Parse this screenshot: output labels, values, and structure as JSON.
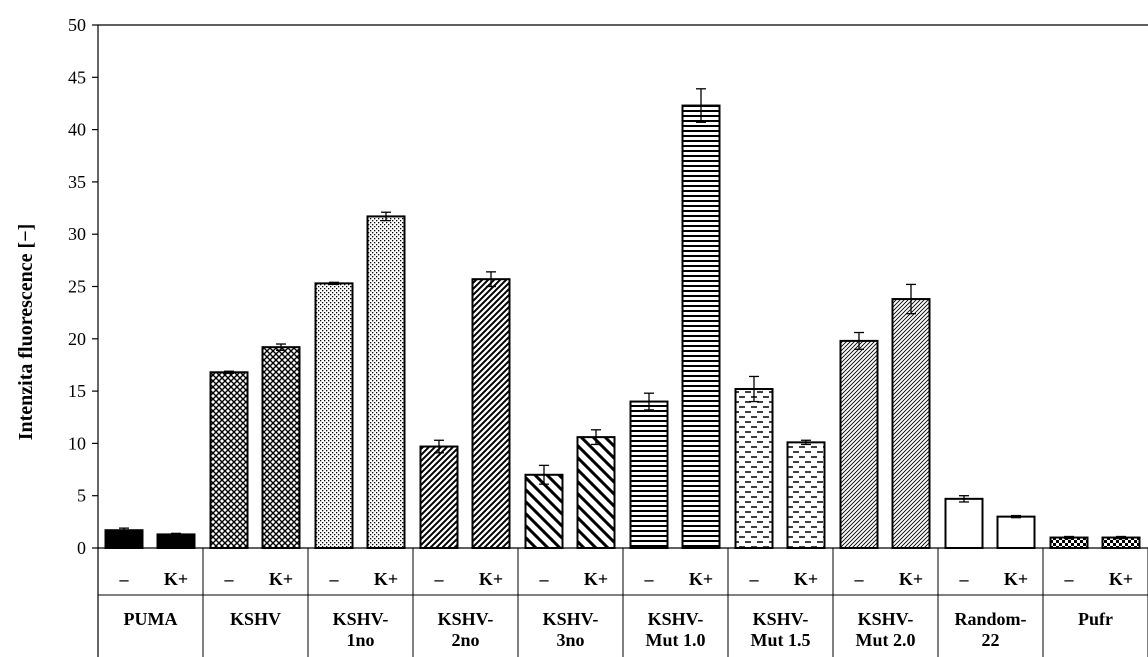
{
  "chart_data": {
    "type": "bar",
    "ylabel": "Intenzita fluorescence [−]",
    "ylim": [
      0,
      50
    ],
    "yticks": [
      "0",
      "5",
      "10",
      "15",
      "20",
      "25",
      "30",
      "35",
      "40",
      "45",
      "50"
    ],
    "grid": false,
    "legend": "none",
    "conditions": [
      "–",
      "K+"
    ],
    "groups": [
      {
        "label": [
          "PUMA"
        ],
        "values": [
          1.7,
          1.3
        ],
        "errors": [
          0.2,
          0.1
        ],
        "pattern": "solid"
      },
      {
        "label": [
          "KSHV"
        ],
        "values": [
          16.8,
          19.2
        ],
        "errors": [
          0.1,
          0.3
        ],
        "pattern": "cross"
      },
      {
        "label": [
          "KSHV-",
          "1no"
        ],
        "values": [
          25.3,
          31.7
        ],
        "errors": [
          0.1,
          0.4
        ],
        "pattern": "dots"
      },
      {
        "label": [
          "KSHV-",
          "2no"
        ],
        "values": [
          9.7,
          25.7
        ],
        "errors": [
          0.6,
          0.7
        ],
        "pattern": "diag-dense"
      },
      {
        "label": [
          "KSHV-",
          "3no"
        ],
        "values": [
          7.0,
          10.6
        ],
        "errors": [
          0.9,
          0.7
        ],
        "pattern": "diag-wide"
      },
      {
        "label": [
          "KSHV-",
          "Mut 1.0"
        ],
        "values": [
          14.0,
          42.3
        ],
        "errors": [
          0.8,
          1.6
        ],
        "pattern": "horizontal"
      },
      {
        "label": [
          "KSHV-",
          "Mut 1.5"
        ],
        "values": [
          15.2,
          10.1
        ],
        "errors": [
          1.2,
          0.2
        ],
        "pattern": "dashes"
      },
      {
        "label": [
          "KSHV-",
          "Mut 2.0"
        ],
        "values": [
          19.8,
          23.8
        ],
        "errors": [
          0.8,
          1.4
        ],
        "pattern": "fine-diag"
      },
      {
        "label": [
          "Random-",
          "22"
        ],
        "values": [
          4.7,
          3.0
        ],
        "errors": [
          0.3,
          0.1
        ],
        "pattern": "none"
      },
      {
        "label": [
          "Pufr"
        ],
        "values": [
          1.0,
          1.0
        ],
        "errors": [
          0.1,
          0.1
        ],
        "pattern": "checker"
      }
    ]
  }
}
